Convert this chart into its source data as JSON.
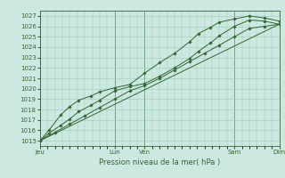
{
  "title": "Pression niveau de la mer( hPa )",
  "ylabel_vals": [
    1015,
    1016,
    1017,
    1018,
    1019,
    1020,
    1021,
    1022,
    1023,
    1024,
    1025,
    1026,
    1027
  ],
  "ylim": [
    1014.5,
    1027.5
  ],
  "xlim": [
    0,
    8.0
  ],
  "xtick_positions": [
    0.0,
    2.5,
    3.5,
    6.5,
    8.0
  ],
  "xtick_labels": [
    "Jeu",
    "Lun",
    "Ven",
    "Sam",
    "Dim"
  ],
  "vline_positions": [
    0.0,
    2.5,
    3.5,
    6.5,
    8.0
  ],
  "bg_color": "#cce8e0",
  "grid_color": "#99ccbb",
  "line_color": "#336633",
  "marker_color": "#336633",
  "series": [
    {
      "x": [
        0.0,
        0.3,
        0.7,
        1.0,
        1.3,
        1.7,
        2.0,
        2.5,
        3.0,
        3.5,
        4.0,
        4.5,
        5.0,
        5.3,
        5.7,
        6.0,
        6.5,
        7.0,
        7.5,
        8.0
      ],
      "y": [
        1015.0,
        1015.7,
        1016.5,
        1017.1,
        1017.8,
        1018.4,
        1018.9,
        1019.8,
        1020.2,
        1020.5,
        1021.2,
        1022.0,
        1022.9,
        1023.6,
        1024.4,
        1025.1,
        1026.0,
        1026.6,
        1026.5,
        1026.2
      ],
      "has_markers": true
    },
    {
      "x": [
        0.0,
        0.3,
        0.7,
        1.0,
        1.3,
        1.7,
        2.0,
        2.5,
        3.0,
        3.5,
        4.0,
        4.5,
        5.0,
        5.3,
        5.7,
        6.0,
        6.5,
        7.0,
        7.5,
        8.0
      ],
      "y": [
        1015.0,
        1016.0,
        1017.5,
        1018.3,
        1018.9,
        1019.3,
        1019.7,
        1020.1,
        1020.4,
        1021.5,
        1022.5,
        1023.4,
        1024.5,
        1025.3,
        1025.9,
        1026.4,
        1026.7,
        1027.0,
        1026.8,
        1026.5
      ],
      "has_markers": true
    },
    {
      "x": [
        0.0,
        8.0
      ],
      "y": [
        1015.0,
        1026.2
      ],
      "has_markers": false
    },
    {
      "x": [
        0.0,
        0.5,
        1.0,
        1.5,
        2.0,
        2.5,
        3.0,
        3.5,
        4.0,
        4.5,
        5.0,
        5.5,
        6.0,
        6.5,
        7.0,
        7.5,
        8.0
      ],
      "y": [
        1015.0,
        1015.8,
        1016.6,
        1017.4,
        1018.2,
        1019.0,
        1019.8,
        1020.3,
        1021.0,
        1021.8,
        1022.6,
        1023.4,
        1024.2,
        1025.0,
        1025.8,
        1026.0,
        1026.2
      ],
      "has_markers": true
    }
  ]
}
